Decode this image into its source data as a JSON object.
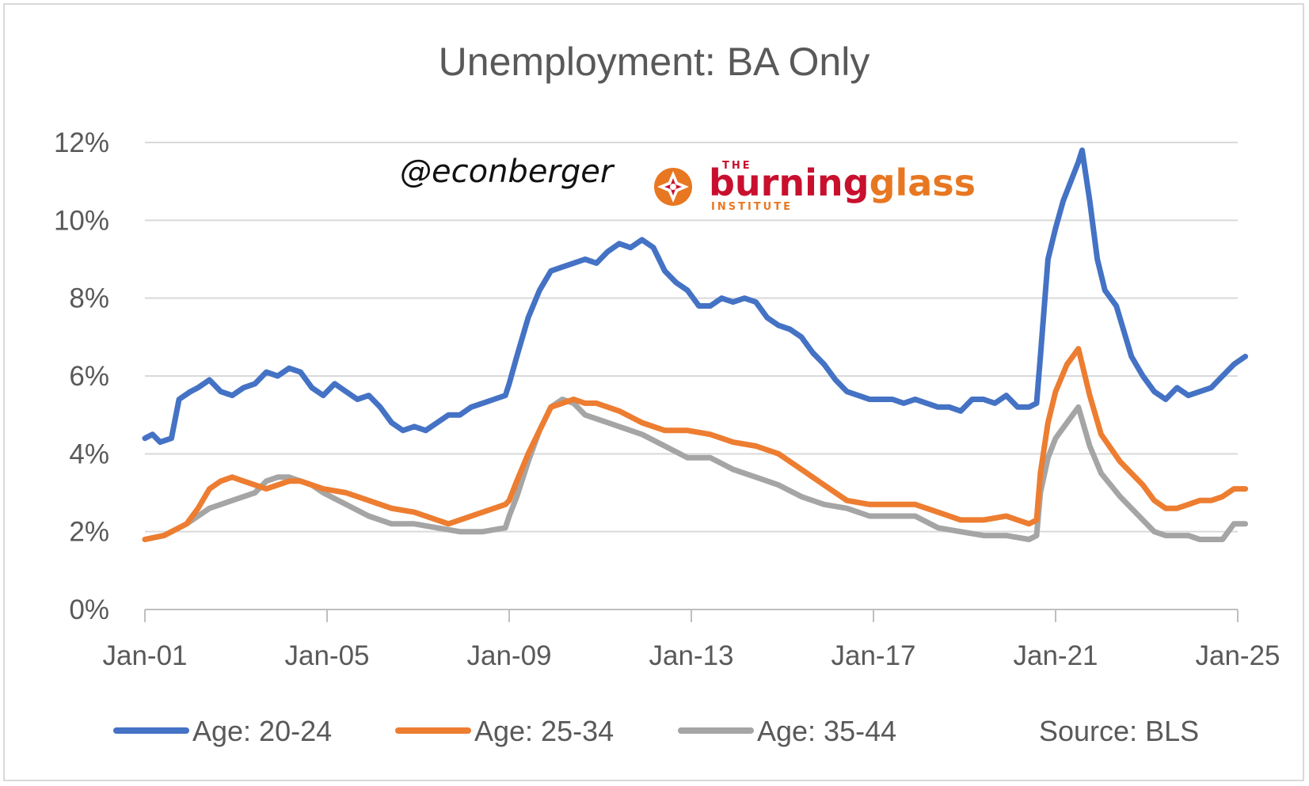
{
  "chart_data": {
    "type": "line",
    "title": "Unemployment: BA Only",
    "xlabel": "",
    "ylabel": "",
    "ylim": [
      0,
      12
    ],
    "y_ticks": [
      0,
      2,
      4,
      6,
      8,
      10,
      12
    ],
    "y_tick_labels": [
      "0%",
      "2%",
      "4%",
      "6%",
      "8%",
      "10%",
      "12%"
    ],
    "x_range": [
      "2001-01",
      "2025-01"
    ],
    "x_ticks": [
      "2001-01",
      "2005-01",
      "2009-01",
      "2013-01",
      "2017-01",
      "2021-01",
      "2025-01"
    ],
    "x_tick_labels": [
      "Jan-01",
      "Jan-05",
      "Jan-09",
      "Jan-13",
      "Jan-17",
      "Jan-21",
      "Jan-25"
    ],
    "grid": "horizontal",
    "legend_position": "bottom",
    "source": "Source: BLS",
    "series": [
      {
        "name": "Age: 20-24",
        "color": "#4472c4",
        "points": [
          [
            "2001-01",
            4.4
          ],
          [
            "2001-03",
            4.5
          ],
          [
            "2001-05",
            4.3
          ],
          [
            "2001-08",
            4.4
          ],
          [
            "2001-10",
            5.4
          ],
          [
            "2002-01",
            5.6
          ],
          [
            "2002-03",
            5.7
          ],
          [
            "2002-06",
            5.9
          ],
          [
            "2002-09",
            5.6
          ],
          [
            "2002-12",
            5.5
          ],
          [
            "2003-03",
            5.7
          ],
          [
            "2003-06",
            5.8
          ],
          [
            "2003-09",
            6.1
          ],
          [
            "2003-12",
            6.0
          ],
          [
            "2004-03",
            6.2
          ],
          [
            "2004-06",
            6.1
          ],
          [
            "2004-09",
            5.7
          ],
          [
            "2004-12",
            5.5
          ],
          [
            "2005-03",
            5.8
          ],
          [
            "2005-06",
            5.6
          ],
          [
            "2005-09",
            5.4
          ],
          [
            "2005-12",
            5.5
          ],
          [
            "2006-03",
            5.2
          ],
          [
            "2006-06",
            4.8
          ],
          [
            "2006-09",
            4.6
          ],
          [
            "2006-12",
            4.7
          ],
          [
            "2007-03",
            4.6
          ],
          [
            "2007-06",
            4.8
          ],
          [
            "2007-09",
            5.0
          ],
          [
            "2007-12",
            5.0
          ],
          [
            "2008-03",
            5.2
          ],
          [
            "2008-06",
            5.3
          ],
          [
            "2008-09",
            5.4
          ],
          [
            "2008-12",
            5.5
          ],
          [
            "2009-01",
            5.8
          ],
          [
            "2009-03",
            6.5
          ],
          [
            "2009-06",
            7.5
          ],
          [
            "2009-09",
            8.2
          ],
          [
            "2009-12",
            8.7
          ],
          [
            "2010-03",
            8.8
          ],
          [
            "2010-06",
            8.9
          ],
          [
            "2010-09",
            9.0
          ],
          [
            "2010-12",
            8.9
          ],
          [
            "2011-03",
            9.2
          ],
          [
            "2011-06",
            9.4
          ],
          [
            "2011-09",
            9.3
          ],
          [
            "2011-12",
            9.5
          ],
          [
            "2012-03",
            9.3
          ],
          [
            "2012-06",
            8.7
          ],
          [
            "2012-09",
            8.4
          ],
          [
            "2012-12",
            8.2
          ],
          [
            "2013-03",
            7.8
          ],
          [
            "2013-06",
            7.8
          ],
          [
            "2013-09",
            8.0
          ],
          [
            "2013-12",
            7.9
          ],
          [
            "2014-03",
            8.0
          ],
          [
            "2014-06",
            7.9
          ],
          [
            "2014-09",
            7.5
          ],
          [
            "2014-12",
            7.3
          ],
          [
            "2015-03",
            7.2
          ],
          [
            "2015-06",
            7.0
          ],
          [
            "2015-09",
            6.6
          ],
          [
            "2015-12",
            6.3
          ],
          [
            "2016-03",
            5.9
          ],
          [
            "2016-06",
            5.6
          ],
          [
            "2016-09",
            5.5
          ],
          [
            "2016-12",
            5.4
          ],
          [
            "2017-03",
            5.4
          ],
          [
            "2017-06",
            5.4
          ],
          [
            "2017-09",
            5.3
          ],
          [
            "2017-12",
            5.4
          ],
          [
            "2018-03",
            5.3
          ],
          [
            "2018-06",
            5.2
          ],
          [
            "2018-09",
            5.2
          ],
          [
            "2018-12",
            5.1
          ],
          [
            "2019-03",
            5.4
          ],
          [
            "2019-06",
            5.4
          ],
          [
            "2019-09",
            5.3
          ],
          [
            "2019-12",
            5.5
          ],
          [
            "2020-03",
            5.2
          ],
          [
            "2020-06",
            5.2
          ],
          [
            "2020-08",
            5.3
          ],
          [
            "2020-09",
            6.5
          ],
          [
            "2020-11",
            9.0
          ],
          [
            "2021-01",
            9.8
          ],
          [
            "2021-03",
            10.5
          ],
          [
            "2021-05",
            11.0
          ],
          [
            "2021-07",
            11.5
          ],
          [
            "2021-08",
            11.8
          ],
          [
            "2021-10",
            10.5
          ],
          [
            "2021-12",
            9.0
          ],
          [
            "2022-02",
            8.2
          ],
          [
            "2022-05",
            7.8
          ],
          [
            "2022-09",
            6.5
          ],
          [
            "2022-12",
            6.0
          ],
          [
            "2023-03",
            5.6
          ],
          [
            "2023-06",
            5.4
          ],
          [
            "2023-09",
            5.7
          ],
          [
            "2023-12",
            5.5
          ],
          [
            "2024-03",
            5.6
          ],
          [
            "2024-06",
            5.7
          ],
          [
            "2024-09",
            6.0
          ],
          [
            "2024-12",
            6.3
          ],
          [
            "2025-03",
            6.5
          ]
        ]
      },
      {
        "name": "Age: 25-34",
        "color": "#ed7d31",
        "points": [
          [
            "2001-01",
            1.8
          ],
          [
            "2001-06",
            1.9
          ],
          [
            "2001-12",
            2.2
          ],
          [
            "2002-03",
            2.6
          ],
          [
            "2002-06",
            3.1
          ],
          [
            "2002-09",
            3.3
          ],
          [
            "2002-12",
            3.4
          ],
          [
            "2003-03",
            3.3
          ],
          [
            "2003-06",
            3.2
          ],
          [
            "2003-09",
            3.1
          ],
          [
            "2003-12",
            3.2
          ],
          [
            "2004-03",
            3.3
          ],
          [
            "2004-06",
            3.3
          ],
          [
            "2004-09",
            3.2
          ],
          [
            "2004-12",
            3.1
          ],
          [
            "2005-06",
            3.0
          ],
          [
            "2005-12",
            2.8
          ],
          [
            "2006-06",
            2.6
          ],
          [
            "2006-12",
            2.5
          ],
          [
            "2007-06",
            2.3
          ],
          [
            "2007-09",
            2.2
          ],
          [
            "2007-12",
            2.3
          ],
          [
            "2008-06",
            2.5
          ],
          [
            "2008-12",
            2.7
          ],
          [
            "2009-01",
            2.8
          ],
          [
            "2009-03",
            3.3
          ],
          [
            "2009-06",
            4.0
          ],
          [
            "2009-09",
            4.6
          ],
          [
            "2009-12",
            5.2
          ],
          [
            "2010-03",
            5.3
          ],
          [
            "2010-06",
            5.4
          ],
          [
            "2010-09",
            5.3
          ],
          [
            "2010-12",
            5.3
          ],
          [
            "2011-06",
            5.1
          ],
          [
            "2011-12",
            4.8
          ],
          [
            "2012-06",
            4.6
          ],
          [
            "2012-12",
            4.6
          ],
          [
            "2013-06",
            4.5
          ],
          [
            "2013-12",
            4.3
          ],
          [
            "2014-06",
            4.2
          ],
          [
            "2014-12",
            4.0
          ],
          [
            "2015-06",
            3.6
          ],
          [
            "2015-12",
            3.2
          ],
          [
            "2016-06",
            2.8
          ],
          [
            "2016-12",
            2.7
          ],
          [
            "2017-06",
            2.7
          ],
          [
            "2017-12",
            2.7
          ],
          [
            "2018-06",
            2.5
          ],
          [
            "2018-12",
            2.3
          ],
          [
            "2019-06",
            2.3
          ],
          [
            "2019-12",
            2.4
          ],
          [
            "2020-03",
            2.3
          ],
          [
            "2020-06",
            2.2
          ],
          [
            "2020-08",
            2.3
          ],
          [
            "2020-09",
            3.5
          ],
          [
            "2020-11",
            4.8
          ],
          [
            "2021-01",
            5.6
          ],
          [
            "2021-04",
            6.3
          ],
          [
            "2021-07",
            6.7
          ],
          [
            "2021-10",
            5.5
          ],
          [
            "2022-01",
            4.5
          ],
          [
            "2022-06",
            3.8
          ],
          [
            "2022-12",
            3.2
          ],
          [
            "2023-03",
            2.8
          ],
          [
            "2023-06",
            2.6
          ],
          [
            "2023-09",
            2.6
          ],
          [
            "2023-12",
            2.7
          ],
          [
            "2024-03",
            2.8
          ],
          [
            "2024-06",
            2.8
          ],
          [
            "2024-09",
            2.9
          ],
          [
            "2024-12",
            3.1
          ],
          [
            "2025-03",
            3.1
          ]
        ]
      },
      {
        "name": "Age: 35-44",
        "color": "#a5a5a5",
        "points": [
          [
            "2001-01",
            1.8
          ],
          [
            "2001-06",
            1.9
          ],
          [
            "2001-12",
            2.2
          ],
          [
            "2002-03",
            2.4
          ],
          [
            "2002-06",
            2.6
          ],
          [
            "2002-09",
            2.7
          ],
          [
            "2002-12",
            2.8
          ],
          [
            "2003-03",
            2.9
          ],
          [
            "2003-06",
            3.0
          ],
          [
            "2003-09",
            3.3
          ],
          [
            "2003-12",
            3.4
          ],
          [
            "2004-03",
            3.4
          ],
          [
            "2004-06",
            3.3
          ],
          [
            "2004-09",
            3.2
          ],
          [
            "2004-12",
            3.0
          ],
          [
            "2005-06",
            2.7
          ],
          [
            "2005-12",
            2.4
          ],
          [
            "2006-06",
            2.2
          ],
          [
            "2006-12",
            2.2
          ],
          [
            "2007-06",
            2.1
          ],
          [
            "2007-12",
            2.0
          ],
          [
            "2008-06",
            2.0
          ],
          [
            "2008-12",
            2.1
          ],
          [
            "2009-01",
            2.4
          ],
          [
            "2009-03",
            2.9
          ],
          [
            "2009-06",
            3.8
          ],
          [
            "2009-09",
            4.6
          ],
          [
            "2009-12",
            5.2
          ],
          [
            "2010-03",
            5.4
          ],
          [
            "2010-06",
            5.3
          ],
          [
            "2010-09",
            5.0
          ],
          [
            "2010-12",
            4.9
          ],
          [
            "2011-06",
            4.7
          ],
          [
            "2011-12",
            4.5
          ],
          [
            "2012-06",
            4.2
          ],
          [
            "2012-12",
            3.9
          ],
          [
            "2013-06",
            3.9
          ],
          [
            "2013-12",
            3.6
          ],
          [
            "2014-06",
            3.4
          ],
          [
            "2014-12",
            3.2
          ],
          [
            "2015-06",
            2.9
          ],
          [
            "2015-12",
            2.7
          ],
          [
            "2016-06",
            2.6
          ],
          [
            "2016-12",
            2.4
          ],
          [
            "2017-06",
            2.4
          ],
          [
            "2017-12",
            2.4
          ],
          [
            "2018-06",
            2.1
          ],
          [
            "2018-12",
            2.0
          ],
          [
            "2019-06",
            1.9
          ],
          [
            "2019-12",
            1.9
          ],
          [
            "2020-06",
            1.8
          ],
          [
            "2020-08",
            1.9
          ],
          [
            "2020-09",
            3.0
          ],
          [
            "2020-11",
            3.9
          ],
          [
            "2021-01",
            4.4
          ],
          [
            "2021-04",
            4.8
          ],
          [
            "2021-07",
            5.2
          ],
          [
            "2021-10",
            4.2
          ],
          [
            "2022-01",
            3.5
          ],
          [
            "2022-06",
            2.9
          ],
          [
            "2022-12",
            2.3
          ],
          [
            "2023-03",
            2.0
          ],
          [
            "2023-06",
            1.9
          ],
          [
            "2023-09",
            1.9
          ],
          [
            "2023-12",
            1.9
          ],
          [
            "2024-03",
            1.8
          ],
          [
            "2024-06",
            1.8
          ],
          [
            "2024-09",
            1.8
          ],
          [
            "2024-12",
            2.2
          ],
          [
            "2025-03",
            2.2
          ]
        ]
      }
    ]
  },
  "branding": {
    "handle": "@econberger",
    "logo_prefix": "THE",
    "logo_word_1": "burning",
    "logo_word_2": "glass",
    "logo_suffix": "INSTITUTE"
  },
  "colors": {
    "grid": "#d9d9d9",
    "axis": "#bfbfbf",
    "text": "#595959",
    "logo_red": "#c8102e",
    "logo_orange": "#e87722"
  }
}
